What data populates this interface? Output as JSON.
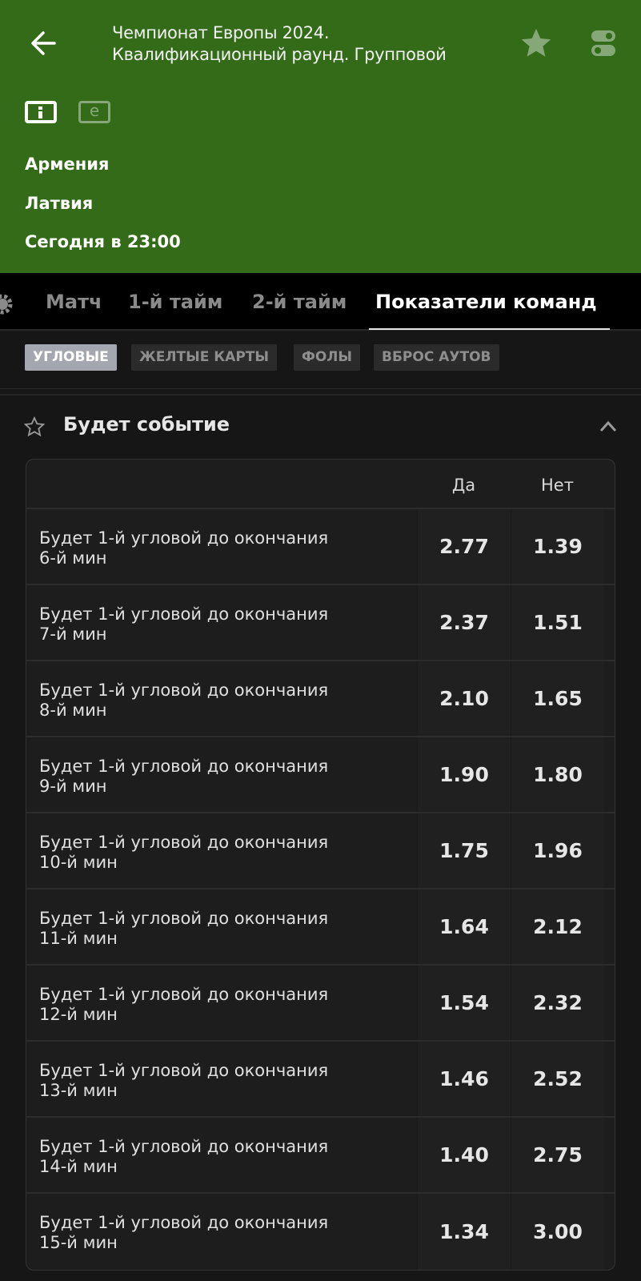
{
  "header": {
    "title_line1": "Чемпионат Европы 2024.",
    "title_line2": "Квалификационный раунд. Групповой",
    "team1": "Армения",
    "team2": "Латвия",
    "time": "Сегодня в 23:00",
    "info_icon_letter": "i",
    "e_icon_letter": "e",
    "bg_color": "#336b19"
  },
  "tabs": [
    {
      "label": "Матч",
      "active": false
    },
    {
      "label": "1-й тайм",
      "active": false
    },
    {
      "label": "2-й тайм",
      "active": false
    },
    {
      "label": "Показатели команд",
      "active": true
    }
  ],
  "chips": [
    {
      "label": "УГЛОВЫЕ",
      "active": true
    },
    {
      "label": "ЖЕЛТЫЕ КАРТЫ",
      "active": false
    },
    {
      "label": "ФОЛЫ",
      "active": false
    },
    {
      "label": "ВБРОС АУТОВ",
      "active": false
    }
  ],
  "section": {
    "title": "Будет событие",
    "col_yes": "Да",
    "col_no": "Нет",
    "rows": [
      {
        "line1": "Будет 1-й угловой до окончания",
        "line2": "6-й мин",
        "yes": "2.77",
        "no": "1.39"
      },
      {
        "line1": "Будет 1-й угловой до окончания",
        "line2": "7-й мин",
        "yes": "2.37",
        "no": "1.51"
      },
      {
        "line1": "Будет 1-й угловой до окончания",
        "line2": "8-й мин",
        "yes": "2.10",
        "no": "1.65"
      },
      {
        "line1": "Будет 1-й угловой до окончания",
        "line2": "9-й мин",
        "yes": "1.90",
        "no": "1.80"
      },
      {
        "line1": "Будет 1-й угловой до окончания",
        "line2": "10-й мин",
        "yes": "1.75",
        "no": "1.96"
      },
      {
        "line1": "Будет 1-й угловой до окончания",
        "line2": "11-й мин",
        "yes": "1.64",
        "no": "2.12"
      },
      {
        "line1": "Будет 1-й угловой до окончания",
        "line2": "12-й мин",
        "yes": "1.54",
        "no": "2.32"
      },
      {
        "line1": "Будет 1-й угловой до окончания",
        "line2": "13-й мин",
        "yes": "1.46",
        "no": "2.52"
      },
      {
        "line1": "Будет 1-й угловой до окончания",
        "line2": "14-й мин",
        "yes": "1.40",
        "no": "2.75"
      },
      {
        "line1": "Будет 1-й угловой до окончания",
        "line2": "15-й мин",
        "yes": "1.34",
        "no": "3.00"
      }
    ]
  }
}
